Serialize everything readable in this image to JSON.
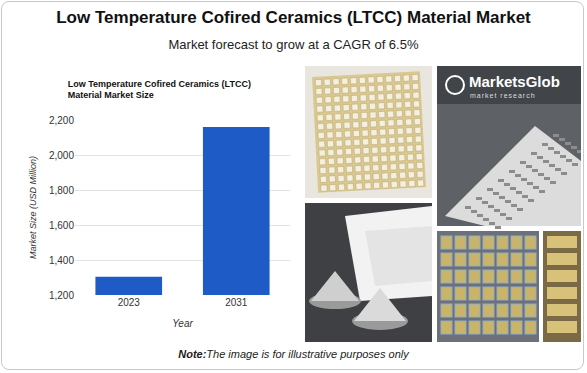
{
  "header": {
    "title": "Low Temperature Cofired Ceramics (LTCC) Material Market",
    "subtitle": "Market forecast to grow at a CAGR of 6.5%"
  },
  "logo": {
    "name": "MarketsGlob",
    "tagline": "market research"
  },
  "note": {
    "label": "Note:",
    "text": "The image is for illustrative purposes only"
  },
  "chart_data": {
    "type": "bar",
    "title": "Low Temperature Cofired Ceramics (LTCC)\nMaterial Market Size",
    "x_label": "Year",
    "y_label": "Market Size (USD Million)",
    "categories": [
      "2023",
      "2031"
    ],
    "values": [
      1305,
      2160
    ],
    "color": "#1f5bc6",
    "ylim": [
      1200,
      2200
    ],
    "yticks": [
      {
        "value": 1200,
        "label": "1,200"
      },
      {
        "value": 1400,
        "label": "1,400"
      },
      {
        "value": 1600,
        "label": "1,600"
      },
      {
        "value": 1800,
        "label": "1,800"
      },
      {
        "value": 2000,
        "label": "2,000"
      },
      {
        "value": 2200,
        "label": "2,200"
      }
    ],
    "grid": true
  }
}
